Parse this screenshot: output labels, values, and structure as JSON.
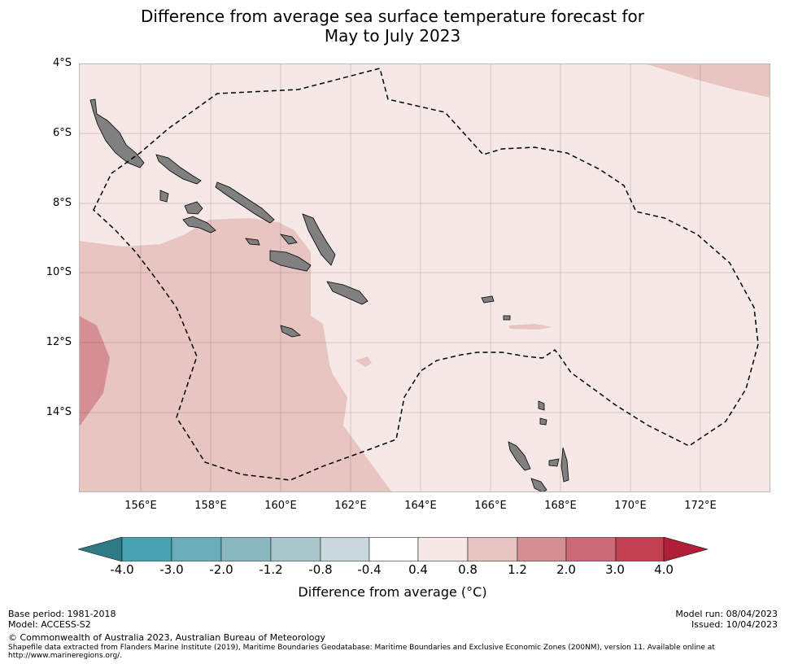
{
  "title": {
    "line1": "Difference from average sea surface temperature forecast for",
    "line2": "May to July 2023"
  },
  "map": {
    "lat_labels": [
      "4°S",
      "6°S",
      "8°S",
      "10°S",
      "12°S",
      "14°S"
    ],
    "lon_labels": [
      "156°E",
      "158°E",
      "160°E",
      "162°E",
      "164°E",
      "166°E",
      "168°E",
      "170°E",
      "172°E"
    ],
    "colors": {
      "anomaly_0_4_to_0_8": "#f5e8e6",
      "anomaly_0_8_to_1_2": "#e8c5c0",
      "anomaly_1_2_to_2_0": "#d68e95",
      "land": "#808080",
      "eez_boundary": "#000000"
    }
  },
  "colorbar": {
    "ticks": [
      "-4.0",
      "-3.0",
      "-2.0",
      "-1.2",
      "-0.8",
      "-0.4",
      "0.4",
      "0.8",
      "1.2",
      "2.0",
      "3.0",
      "4.0"
    ],
    "colors": [
      "#2e7a85",
      "#48a2b0",
      "#6aaebb",
      "#8ab8c0",
      "#a9c6cb",
      "#c9d8dc",
      "#ffffff",
      "#f5e8e6",
      "#e8c5c0",
      "#d68e95",
      "#cc6b76",
      "#c04050",
      "#b01e38"
    ],
    "label": "Difference from average (°C)"
  },
  "footer": {
    "base_period": "Base period: 1981-2018",
    "model": "Model: ACCESS-S2",
    "copyright": "© Commonwealth of Australia 2023, Australian Bureau of Meteorology",
    "shapefile_note": "Shapefile data extracted from Flanders Marine Institute (2019), Maritime Boundaries Geodatabase: Maritime Boundaries and Exclusive Economic Zones (200NM), version 11. Available online at http://www.marineregions.org/.",
    "model_run": "Model run: 08/04/2023",
    "issued": "Issued: 10/04/2023"
  }
}
